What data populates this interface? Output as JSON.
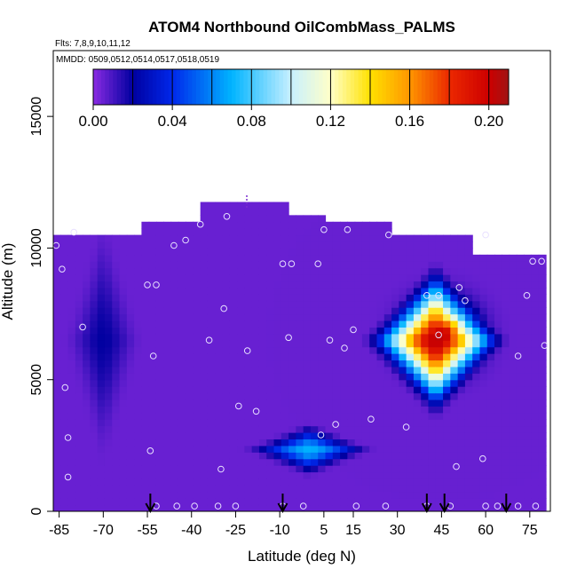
{
  "chart_data": {
    "type": "heatmap",
    "title": "ATOM4 Northbound OilCombMass_PALMS",
    "subtitle_flights": "Flts: 7,8,9,10,11,12",
    "subtitle_dates": "MMDD: 0509,0512,0514,0517,0518,0519",
    "xlabel": "Latitude (deg N)",
    "ylabel": "Altitude (m)",
    "xlim": [
      -87,
      82
    ],
    "ylim": [
      0,
      17500
    ],
    "x_ticks": [
      -85,
      -70,
      -55,
      -40,
      -25,
      -10,
      5,
      15,
      30,
      45,
      60,
      75
    ],
    "x_tick_labels": [
      "-85",
      "-70",
      "-55",
      "-40",
      "-25",
      "-10",
      "5",
      "15",
      "30",
      "45",
      "60",
      "75"
    ],
    "y_ticks": [
      0,
      5000,
      10000,
      15000
    ],
    "y_tick_labels": [
      "0",
      "5000",
      "10000",
      "15000"
    ],
    "colorbar": {
      "range": [
        0,
        0.21
      ],
      "ticks": [
        0.0,
        0.04,
        0.08,
        0.12,
        0.16,
        0.2
      ],
      "tick_labels": [
        "0.00",
        "0.04",
        "0.08",
        "0.12",
        "0.16",
        "0.20"
      ],
      "placement": "top-inside"
    },
    "background_value": 0.005,
    "data_envelope": [
      [
        -86,
        0
      ],
      [
        -86,
        10500
      ],
      [
        -57,
        10500
      ],
      [
        -57,
        11000
      ],
      [
        -37,
        11000
      ],
      [
        -37,
        11800
      ],
      [
        -7,
        11800
      ],
      [
        -7,
        11300
      ],
      [
        5,
        11300
      ],
      [
        5,
        10900
      ],
      [
        27,
        10900
      ],
      [
        27,
        10600
      ],
      [
        55,
        10600
      ],
      [
        55,
        9800
      ],
      [
        80,
        9800
      ],
      [
        80,
        0
      ]
    ],
    "plumes": [
      {
        "name": "",
        "center_lat": 43,
        "center_alt": 6500,
        "lat_halfwidth": 27,
        "alt_halfwidth": 2900,
        "peak": 0.2,
        "core_lat": 45,
        "core_alt": 6700
      },
      {
        "name": "",
        "center_lat": 0,
        "center_alt": 2350,
        "lat_halfwidth": 24,
        "alt_halfwidth": 1000,
        "peak": 0.065
      },
      {
        "name": "",
        "center_lat": -70,
        "center_alt": 6500,
        "lat_halfwidth": 14,
        "alt_halfwidth": 4500,
        "peak": 0.015
      }
    ],
    "sample_points": [
      [
        -86,
        10100
      ],
      [
        -84,
        9200
      ],
      [
        -80,
        10600
      ],
      [
        -77,
        7000
      ],
      [
        -83,
        4700
      ],
      [
        -82,
        2800
      ],
      [
        -82,
        1300
      ],
      [
        -55,
        8600
      ],
      [
        -52,
        8600
      ],
      [
        -53,
        5900
      ],
      [
        -54,
        2300
      ],
      [
        -46,
        10100
      ],
      [
        -42,
        10300
      ],
      [
        -37,
        10900
      ],
      [
        -34,
        6500
      ],
      [
        -29,
        7700
      ],
      [
        -28,
        11200
      ],
      [
        -24,
        4000
      ],
      [
        -30,
        1600
      ],
      [
        -21,
        6100
      ],
      [
        -18,
        3800
      ],
      [
        -9,
        9400
      ],
      [
        -6,
        9400
      ],
      [
        -7,
        6600
      ],
      [
        3,
        9400
      ],
      [
        5,
        10700
      ],
      [
        13,
        10700
      ],
      [
        7,
        6500
      ],
      [
        12,
        6200
      ],
      [
        15,
        6900
      ],
      [
        9,
        3300
      ],
      [
        4,
        2900
      ],
      [
        21,
        3500
      ],
      [
        27,
        10500
      ],
      [
        33,
        3200
      ],
      [
        40,
        8200
      ],
      [
        44,
        8200
      ],
      [
        44,
        6700
      ],
      [
        51,
        8500
      ],
      [
        53,
        8000
      ],
      [
        50,
        1700
      ],
      [
        60,
        10500
      ],
      [
        59,
        2000
      ],
      [
        71,
        5900
      ],
      [
        74,
        8200
      ],
      [
        76,
        9500
      ],
      [
        79,
        9500
      ],
      [
        80,
        6300
      ],
      [
        -52,
        200
      ],
      [
        -45,
        200
      ],
      [
        -39,
        200
      ],
      [
        -31,
        200
      ],
      [
        -25,
        200
      ],
      [
        -9,
        200
      ],
      [
        -2,
        200
      ],
      [
        16,
        200
      ],
      [
        26,
        200
      ],
      [
        40,
        200
      ],
      [
        48,
        200
      ],
      [
        60,
        200
      ],
      [
        64,
        200
      ],
      [
        71,
        200
      ],
      [
        77,
        200
      ]
    ],
    "flight_arrows_lat": [
      -54,
      -9,
      40,
      46,
      67
    ],
    "grid": false
  }
}
